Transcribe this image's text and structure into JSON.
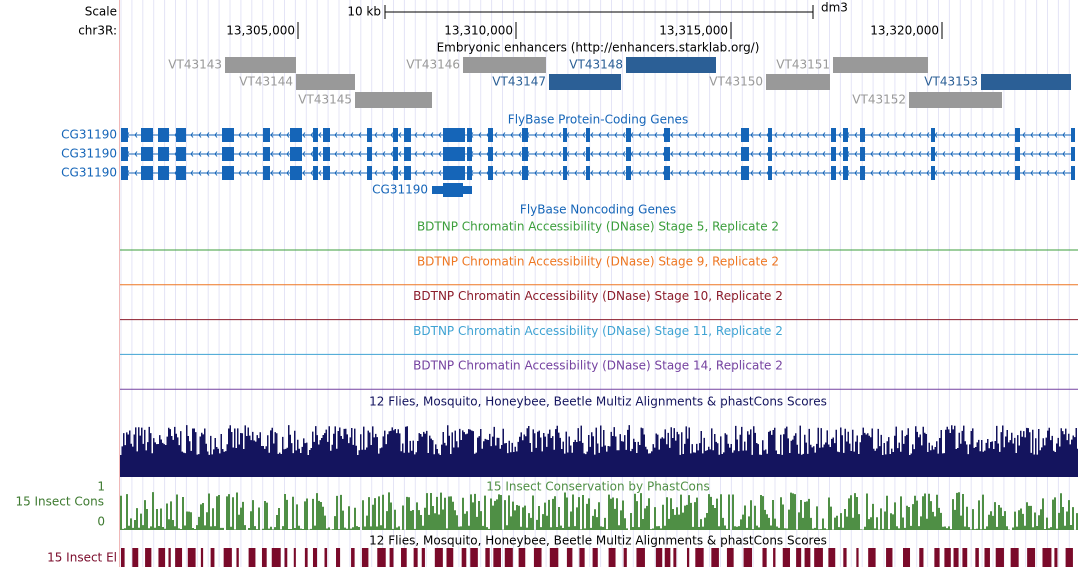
{
  "scale": {
    "label": "Scale",
    "size": "10 kb",
    "assembly": "dm3"
  },
  "position": {
    "chrom": "chr3R:",
    "ticks": [
      "13,305,000",
      "13,310,000",
      "13,315,000",
      "13,320,000"
    ]
  },
  "enhancers": {
    "title": "Embryonic enhancers (http://enhancers.starklab.org/)",
    "items": [
      "VT43143",
      "VT43144",
      "VT43145",
      "VT43146",
      "VT43147",
      "VT43148",
      "VT43150",
      "VT43151",
      "VT43152",
      "VT43153"
    ]
  },
  "genes": {
    "title": "FlyBase Protein-Coding Genes",
    "transcripts": [
      "CG31190",
      "CG31190",
      "CG31190",
      "CG31190"
    ]
  },
  "noncoding": {
    "title": "FlyBase Noncoding Genes"
  },
  "dnase": {
    "tracks": [
      "BDTNP Chromatin Accessibility (DNase) Stage 5, Replicate 2",
      "BDTNP Chromatin Accessibility (DNase) Stage 9, Replicate 2",
      "BDTNP Chromatin Accessibility (DNase) Stage 10, Replicate 2",
      "BDTNP Chromatin Accessibility (DNase) Stage 11, Replicate 2",
      "BDTNP Chromatin Accessibility (DNase) Stage 14, Replicate 2"
    ]
  },
  "multiz": {
    "title": "12 Flies, Mosquito, Honeybee, Beetle Multiz Alignments & phastCons Scores"
  },
  "conservation": {
    "label": "15 Insect Cons",
    "title": "15 Insect Conservation by PhastCons",
    "max": "1",
    "min": "0"
  },
  "elements": {
    "title": "12 Flies, Mosquito, Honeybee, Beetle Multiz Alignments & phastCons Scores",
    "label": "15 Insect El"
  }
}
